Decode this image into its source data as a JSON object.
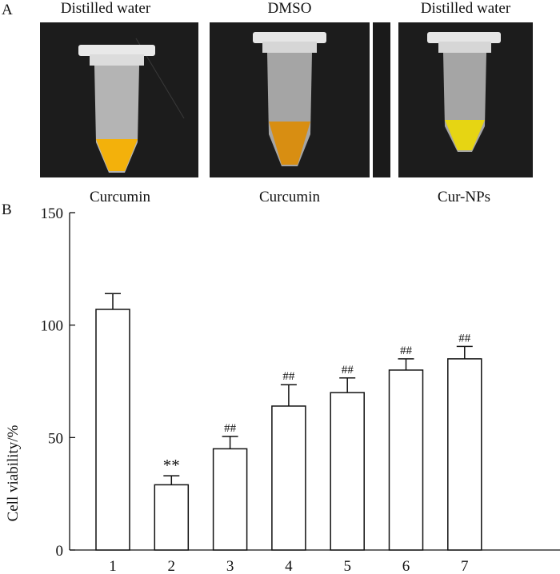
{
  "panel_a": {
    "label": "A",
    "photos": [
      {
        "top_caption": "Distilled water",
        "bottom_caption": "Curcumin",
        "liquid_color": "#f3b10b"
      },
      {
        "top_caption": "DMSO",
        "bottom_caption": "Curcumin",
        "liquid_color": "#d88e12"
      },
      {
        "top_caption": "Distilled water",
        "bottom_caption": "Cur-NPs",
        "liquid_color": "#e6d513"
      }
    ]
  },
  "chart_data": {
    "type": "bar",
    "panel_label": "B",
    "ylabel": "Cell viability/%",
    "xlabel": "",
    "ylim": [
      0,
      150
    ],
    "yticks": [
      0,
      50,
      100,
      150
    ],
    "categories": [
      "1",
      "2",
      "3",
      "4",
      "5",
      "6",
      "7"
    ],
    "values": [
      107,
      29,
      45,
      64,
      70,
      80,
      85
    ],
    "errors": [
      7,
      4,
      5.5,
      9.5,
      6.5,
      5,
      5.5
    ],
    "annotations": [
      "",
      "**",
      "##",
      "##",
      "##",
      "##",
      "##"
    ]
  }
}
